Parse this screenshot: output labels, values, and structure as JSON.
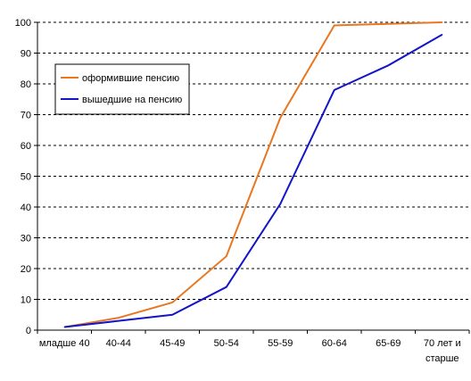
{
  "chart_data": {
    "type": "line",
    "title": "",
    "xlabel": "",
    "ylabel": "",
    "categories": [
      "младше 40",
      "40-44",
      "45-49",
      "50-54",
      "55-59",
      "60-64",
      "65-69",
      "70 лет и старше"
    ],
    "ylim": [
      0,
      100
    ],
    "yticks": [
      0,
      10,
      20,
      30,
      40,
      50,
      60,
      70,
      80,
      90,
      100
    ],
    "grid": true,
    "legend_position": "top-left",
    "series": [
      {
        "name": "оформившие пенсию",
        "color": "#E87722",
        "values": [
          1,
          4,
          9,
          24,
          69,
          99,
          99.5,
          100
        ]
      },
      {
        "name": "вышедшие на пенсию",
        "color": "#1414C8",
        "values": [
          1,
          3,
          5,
          14,
          41,
          78,
          86,
          96
        ]
      }
    ]
  }
}
